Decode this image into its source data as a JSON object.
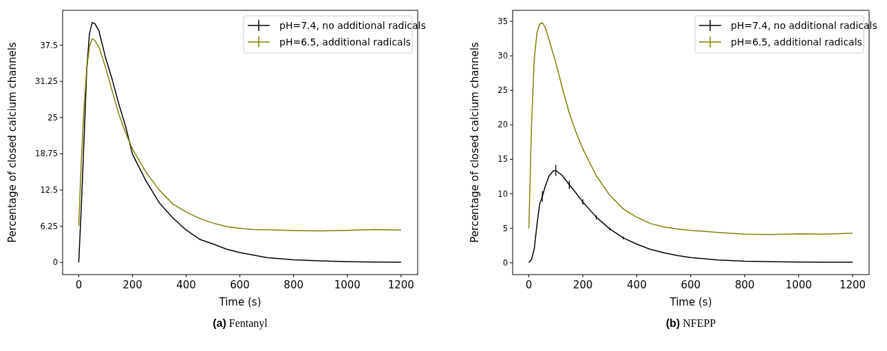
{
  "chart_data": [
    {
      "type": "line",
      "title": "(a) Fentanyl",
      "xlabel": "Time (s)",
      "ylabel": "Percentage of closed calcium channels",
      "xlim": [
        -60,
        1262
      ],
      "ylim": [
        -2.09,
        43.5
      ],
      "xticks": [
        0,
        200,
        400,
        600,
        800,
        1000,
        1200
      ],
      "yticks": [
        0,
        6.25,
        12.5,
        18.75,
        25,
        31.25,
        37.5
      ],
      "legend": "top right",
      "series": [
        {
          "name": "pH=7.4, no additional radicals",
          "color": "#000000",
          "x": [
            0,
            10,
            20,
            30,
            40,
            50,
            60,
            75,
            100,
            125,
            150,
            175,
            200,
            250,
            300,
            350,
            400,
            450,
            500,
            550,
            600,
            700,
            800,
            900,
            1000,
            1100,
            1200
          ],
          "values": [
            0,
            10,
            21.5,
            33.4,
            39.5,
            41.4,
            41.2,
            40,
            35.3,
            31.5,
            27.2,
            23.4,
            18.7,
            14.1,
            10.3,
            7.7,
            5.6,
            4,
            3.2,
            2.3,
            1.7,
            0.85,
            0.47,
            0.28,
            0.14,
            0.08,
            0.05
          ]
        },
        {
          "name": "pH=6.5, additional radicals",
          "color": "#808000",
          "x": [
            0,
            10,
            20,
            30,
            40,
            50,
            60,
            75,
            100,
            125,
            150,
            175,
            200,
            250,
            300,
            350,
            400,
            450,
            500,
            550,
            600,
            650,
            700,
            800,
            900,
            1000,
            1100,
            1200
          ],
          "values": [
            6.3,
            18,
            27,
            33.5,
            37.3,
            38.6,
            38.3,
            37.2,
            33.6,
            29.5,
            25.5,
            22.3,
            19.6,
            15.6,
            12.5,
            10.1,
            8.7,
            7.6,
            6.8,
            6.2,
            5.9,
            5.7,
            5.65,
            5.5,
            5.45,
            5.55,
            5.7,
            5.6
          ]
        }
      ]
    },
    {
      "type": "line",
      "title": "(b) NFEPP",
      "xlabel": "Time (s)",
      "ylabel": "Percentage of closed calcium channels",
      "xlim": [
        -60,
        1261
      ],
      "ylim": [
        -1.72,
        36.6
      ],
      "xticks": [
        0,
        200,
        400,
        600,
        800,
        1000,
        1200
      ],
      "yticks": [
        0,
        5,
        10,
        15,
        20,
        25,
        30,
        35
      ],
      "legend": "top right",
      "series": [
        {
          "name": "pH=7.4, no additional radicals",
          "color": "#000000",
          "x": [
            0,
            10,
            20,
            30,
            40,
            50,
            60,
            75,
            90,
            100,
            125,
            150,
            175,
            200,
            250,
            300,
            350,
            400,
            450,
            500,
            550,
            600,
            700,
            800,
            900,
            1000,
            1100,
            1200
          ],
          "values": [
            0,
            0.5,
            2,
            5.5,
            8.5,
            9.6,
            11,
            12.6,
            13.3,
            13.4,
            12.6,
            11.3,
            10.1,
            8.8,
            6.6,
            4.9,
            3.6,
            2.7,
            1.95,
            1.45,
            1.05,
            0.75,
            0.4,
            0.22,
            0.14,
            0.1,
            0.08,
            0.07
          ],
          "errors": [
            null,
            null,
            null,
            null,
            null,
            0.8,
            null,
            null,
            null,
            0.8,
            null,
            0.6,
            null,
            0.4,
            0.3,
            0.2,
            0.2,
            null,
            null,
            null,
            null,
            null,
            null,
            null,
            null,
            null,
            null,
            null
          ]
        },
        {
          "name": "pH=6.5, additional radicals",
          "color": "#808000",
          "x": [
            0,
            10,
            20,
            30,
            40,
            50,
            60,
            75,
            100,
            125,
            150,
            175,
            200,
            250,
            300,
            350,
            400,
            450,
            500,
            550,
            600,
            700,
            800,
            900,
            1000,
            1100,
            1200
          ],
          "values": [
            5,
            20,
            29.5,
            33.3,
            34.6,
            34.8,
            34.2,
            32.3,
            29,
            25.2,
            21.7,
            18.9,
            16.5,
            12.6,
            9.8,
            7.8,
            6.6,
            5.7,
            5.2,
            4.9,
            4.7,
            4.4,
            4.15,
            4.1,
            4.2,
            4.15,
            4.3
          ]
        }
      ]
    }
  ]
}
